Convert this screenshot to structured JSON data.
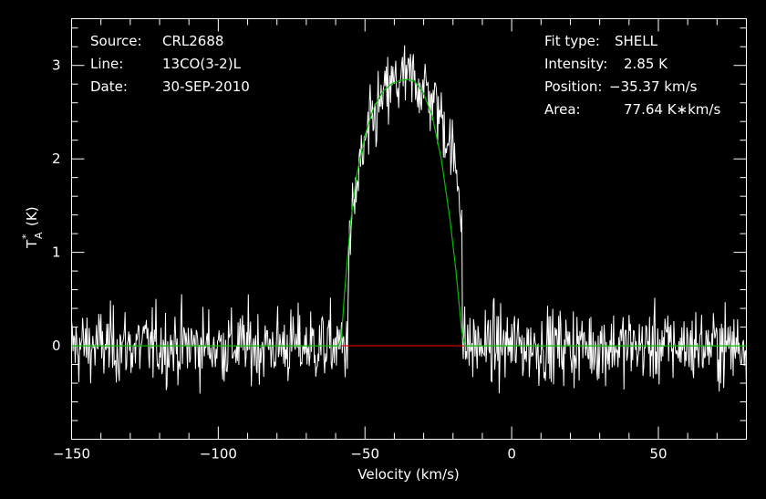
{
  "chart_data": {
    "type": "line",
    "xlabel": "Velocity (km/s)",
    "ylabel_main": "T",
    "ylabel_sup": "*",
    "ylabel_sub": "A",
    "ylabel_unit": "(K)",
    "xlim": [
      -150,
      80
    ],
    "ylim": [
      -1.0,
      3.5
    ],
    "x_ticks_major": [
      -150,
      -100,
      -50,
      0,
      50
    ],
    "x_tick_labels": [
      "−150",
      "−100",
      "−50",
      "0",
      "50"
    ],
    "y_ticks_major": [
      0,
      1,
      2,
      3
    ],
    "y_tick_labels": [
      "0",
      "1",
      "2",
      "3"
    ],
    "grid": false,
    "colors": {
      "data": "#ffffff",
      "fit": "#00c000",
      "baseline": "#e00000",
      "axes": "#ffffff"
    },
    "info_left": [
      {
        "key": "Source:",
        "value": "CRL2688"
      },
      {
        "key": "Line:",
        "value": "13CO(3-2)L"
      },
      {
        "key": "Date:",
        "value": "30-SEP-2010"
      }
    ],
    "info_right": [
      {
        "key": "Fit type:",
        "value": "SHELL"
      },
      {
        "key": "Intensity:",
        "value": "2.85 K"
      },
      {
        "key": "Position:",
        "value": "−35.37 km/s"
      },
      {
        "key": "Area:",
        "value": "77.64 K∗km/s"
      }
    ],
    "series": [
      {
        "role": "spectrum",
        "noise_rms": 0.2,
        "sample_step": 0.25,
        "profile": {
          "v_lo": -58,
          "v_hi": -17,
          "peak": 2.85,
          "center": -35.37,
          "horn": 0.3
        }
      },
      {
        "role": "fit",
        "x": [
          -150,
          -59,
          -58,
          -57,
          -55,
          -53,
          -50,
          -47,
          -44,
          -41,
          -38,
          -35.4,
          -33,
          -30,
          -27,
          -24,
          -21,
          -19,
          -17,
          -16,
          80
        ],
        "y": [
          0,
          0,
          0.1,
          0.55,
          1.3,
          1.8,
          2.25,
          2.55,
          2.72,
          2.8,
          2.84,
          2.85,
          2.83,
          2.7,
          2.45,
          2.0,
          1.35,
          0.8,
          0.15,
          0,
          0
        ]
      },
      {
        "role": "baseline-window",
        "x": [
          -58,
          -16
        ],
        "y": [
          0,
          0
        ]
      }
    ]
  }
}
